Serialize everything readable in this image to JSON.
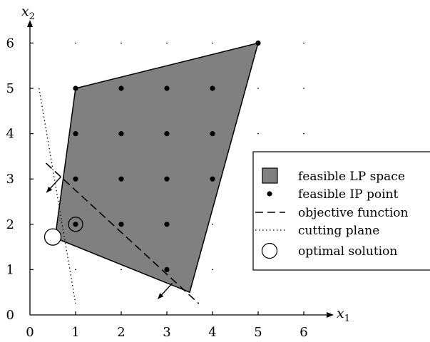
{
  "axes": {
    "x_label": "x",
    "x_sub": "1",
    "y_label": "x",
    "y_sub": "2",
    "x_ticks": [
      "0",
      "1",
      "2",
      "3",
      "4",
      "5",
      "6"
    ],
    "y_ticks": [
      "0",
      "1",
      "2",
      "3",
      "4",
      "5",
      "6"
    ]
  },
  "legend": {
    "feasible_lp": "feasible LP space",
    "feasible_ip": "feasible IP point",
    "objective": "objective function",
    "cutting": "cutting plane",
    "optimal": "optimal solution"
  },
  "colors": {
    "region_fill": "#808080",
    "stroke": "#000000"
  },
  "diagram": {
    "polygon": [
      [
        1,
        5
      ],
      [
        5,
        6
      ],
      [
        3.5,
        0.5
      ],
      [
        0.55,
        1.7
      ]
    ],
    "ip_points": [
      [
        5,
        6
      ],
      [
        1,
        5
      ],
      [
        2,
        5
      ],
      [
        3,
        5
      ],
      [
        4,
        5
      ],
      [
        1,
        4
      ],
      [
        2,
        4
      ],
      [
        3,
        4
      ],
      [
        4,
        4
      ],
      [
        1,
        3
      ],
      [
        2,
        3
      ],
      [
        3,
        3
      ],
      [
        4,
        3
      ],
      [
        1,
        2
      ],
      [
        2,
        2
      ],
      [
        3,
        2
      ],
      [
        3,
        1
      ]
    ],
    "lattice_max": 6,
    "objective_line": [
      [
        0.35,
        3.35
      ],
      [
        3.7,
        0.25
      ]
    ],
    "objective_normals": [
      [
        0.68,
        3.05
      ],
      [
        3.12,
        0.7
      ]
    ],
    "cutting_line": [
      [
        0.2,
        5.0
      ],
      [
        1.0,
        0.25
      ]
    ],
    "optimal_marker": [
      0.5,
      1.72
    ],
    "ip_marker": [
      1,
      2
    ]
  }
}
